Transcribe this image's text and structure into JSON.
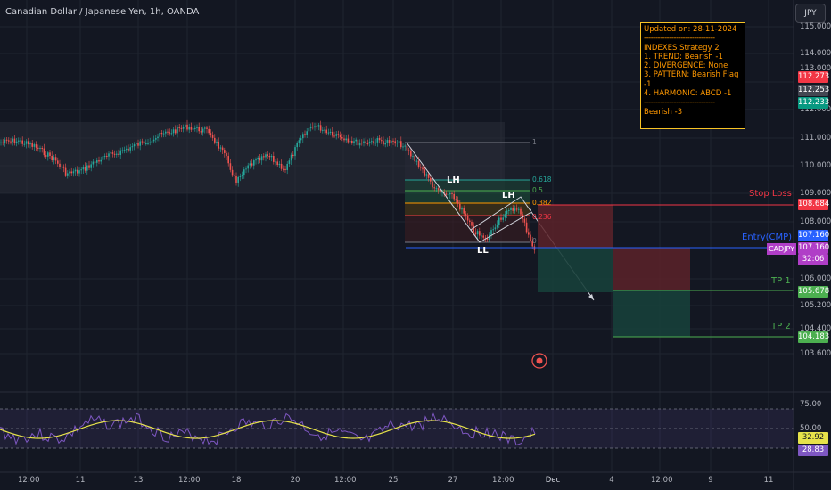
{
  "header": {
    "symbol_title": "Canadian Dollar / Japanese Yen, 1h, OANDA",
    "currency": "JPY"
  },
  "info_box": {
    "updated": "Updated on: 28-11-2024",
    "separator": "-------------------------------",
    "strategy": "INDEXES Strategy 2",
    "lines": [
      "1. TREND: Bearish -1",
      "2. DIVERGENCE: None",
      "3. PATTERN: Bearish Flag -1",
      "4. HARMONIC: ABCD -1"
    ],
    "result": "Bearish -3"
  },
  "price_axis": {
    "labels": [
      "115.000",
      "114.000",
      "113.000",
      "112.000",
      "111.000",
      "110.000",
      "109.000",
      "108.000",
      "106.000",
      "105.200",
      "104.400",
      "103.600"
    ],
    "badges": {
      "high": "112.273",
      "mid": "112.253",
      "low": "112.233",
      "stop_loss": "108.684",
      "entry": "107.160",
      "symbol": "CADJPY",
      "current": "107.160",
      "countdown": "32:06",
      "tp1": "105.678",
      "tp2": "104.183"
    }
  },
  "levels": {
    "stop_loss": "Stop Loss",
    "entry": "Entry(CMP)",
    "tp1": "TP 1",
    "tp2": "TP 2"
  },
  "fib": {
    "f1": "1",
    "f618": "0.618",
    "f5": "0.5",
    "f382": "0.382",
    "f236": "0.236",
    "f0": "0"
  },
  "patterns": {
    "lh1": "LH",
    "lh2": "LH",
    "ll": "LL"
  },
  "rsi": {
    "labels": [
      "75.00",
      "50.00",
      "25.00"
    ],
    "value1": "32.92",
    "value2": "28.83"
  },
  "time_axis": [
    "12:00",
    "11",
    "13",
    "12:00",
    "18",
    "20",
    "12:00",
    "25",
    "27",
    "12:00",
    "Dec",
    "4",
    "12:00",
    "9",
    "11"
  ],
  "colors": {
    "background": "#131722",
    "stop_loss": "#f23645",
    "entry": "#2962ff",
    "take_profit": "#4caf50",
    "up_candle": "#26a69a",
    "down_candle": "#ef5350",
    "rsi_line": "#7e57c2",
    "rsi_ma": "#e6e24a"
  }
}
